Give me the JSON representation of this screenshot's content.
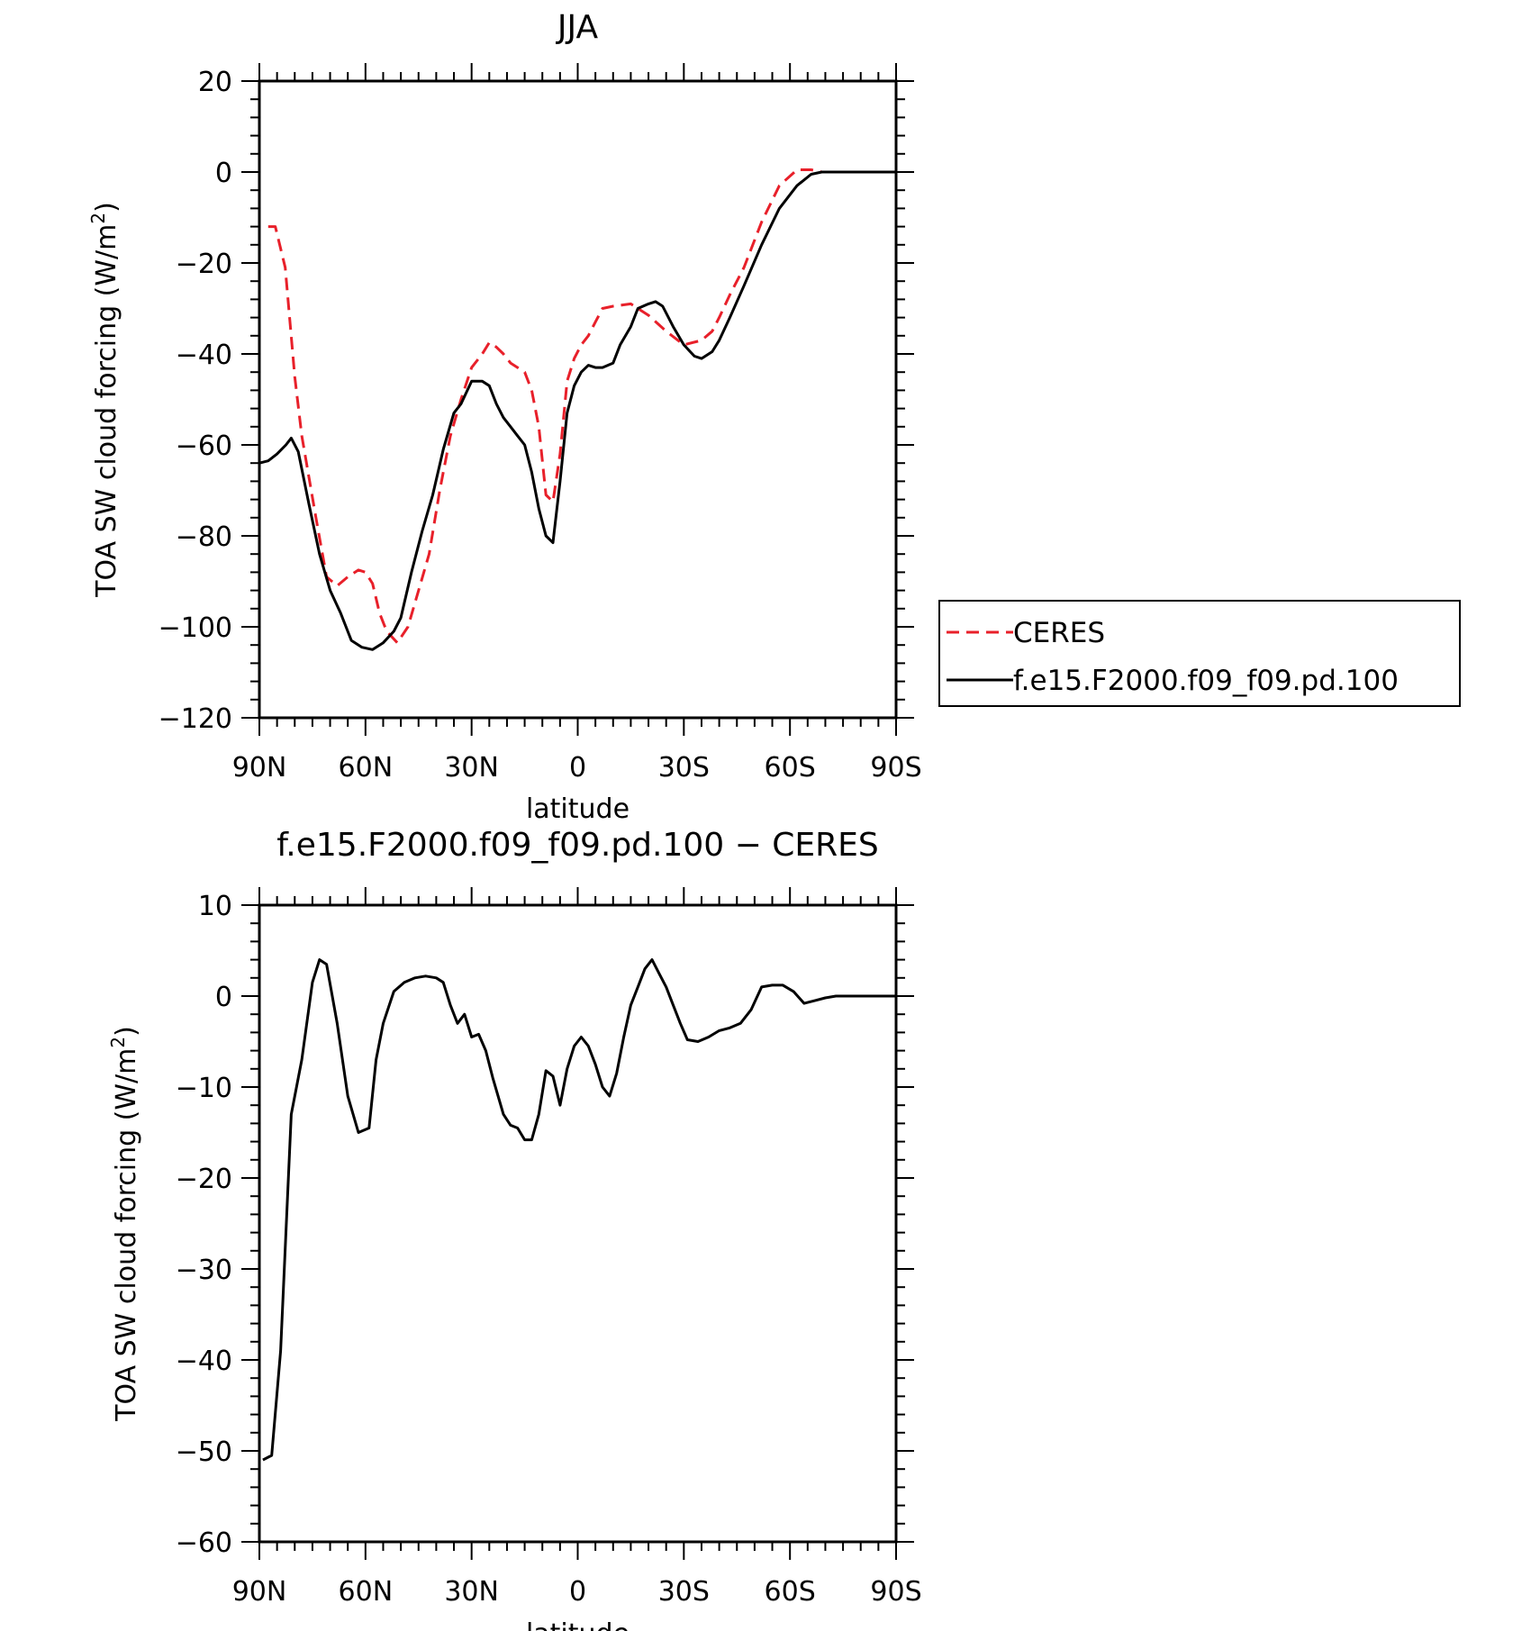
{
  "colors": {
    "ceres": "#e8202a",
    "model": "#000000",
    "axes": "#000000"
  },
  "chart_data": [
    {
      "type": "line",
      "title": "JJA",
      "xlabel": "latitude",
      "ylabel": "TOA SW cloud forcing (W/m²)",
      "ylabel_parts": [
        "TOA SW cloud forcing (W/m",
        "2",
        ")"
      ],
      "xlim": [
        -90,
        90
      ],
      "ylim": [
        -120,
        20
      ],
      "x_ticks": [
        -90,
        -60,
        -30,
        0,
        30,
        60,
        90
      ],
      "x_tick_labels": [
        "90N",
        "60N",
        "30N",
        "0",
        "30S",
        "60S",
        "90S"
      ],
      "y_ticks": [
        20,
        0,
        -20,
        -40,
        -60,
        -80,
        -100,
        -120
      ],
      "y_tick_labels": [
        "20",
        "0",
        "−20",
        "−40",
        "−60",
        "−80",
        "−100",
        "−120"
      ],
      "legend": {
        "placement": "right",
        "entries": [
          "CERES",
          "f.e15.F2000.f09_f09.pd.100"
        ]
      },
      "series": [
        {
          "name": "CERES",
          "style": "dashed",
          "x": [
            -87.5,
            -85.5,
            -82.7,
            -80,
            -78,
            -74,
            -71,
            -68,
            -65,
            -62,
            -60,
            -58,
            -56,
            -54,
            -51,
            -48,
            -45,
            -42,
            -39,
            -36,
            -33,
            -30,
            -27,
            -25,
            -23,
            -21,
            -19,
            -17,
            -15,
            -13,
            -11,
            -9,
            -7,
            -5,
            -3,
            -1,
            1,
            3,
            5,
            7,
            10,
            15,
            20,
            25,
            30,
            35,
            38,
            40,
            43,
            47,
            52,
            57,
            62,
            66,
            69,
            72,
            75,
            80,
            85,
            90
          ],
          "y": [
            -12,
            -12,
            -21,
            -45,
            -58,
            -76,
            -89,
            -91,
            -89,
            -87.5,
            -88,
            -90.5,
            -97,
            -101,
            -103.5,
            -100,
            -92,
            -84,
            -70,
            -58,
            -50,
            -43,
            -40,
            -37.5,
            -38.5,
            -40,
            -42,
            -43,
            -44,
            -48,
            -56,
            -71,
            -72.5,
            -62,
            -46,
            -41,
            -38,
            -36,
            -33,
            -30,
            -29.5,
            -29,
            -31.5,
            -35,
            -38,
            -37,
            -35,
            -32,
            -27,
            -21,
            -11,
            -3,
            0.5,
            0.5,
            0,
            0,
            0,
            0,
            0,
            0
          ]
        },
        {
          "name": "f.e15.F2000.f09_f09.pd.100",
          "style": "solid",
          "x": [
            -90,
            -87.5,
            -85,
            -82.5,
            -81,
            -79,
            -76,
            -73,
            -70,
            -67,
            -64,
            -61,
            -58,
            -55,
            -52,
            -50,
            -47,
            -44,
            -41,
            -38,
            -35,
            -33,
            -30,
            -27,
            -25,
            -23,
            -21,
            -19,
            -17,
            -15,
            -13,
            -11,
            -9,
            -7,
            -5,
            -3,
            -1,
            1,
            3,
            5,
            7,
            10,
            12,
            15,
            17,
            20,
            22,
            24,
            27,
            30,
            33,
            35,
            38,
            40,
            43,
            47,
            52,
            57,
            62,
            66,
            69,
            72,
            75,
            80,
            85,
            90
          ],
          "y": [
            -64,
            -63.5,
            -62,
            -60,
            -58.5,
            -61.5,
            -73,
            -84,
            -92,
            -97,
            -103,
            -104.5,
            -105,
            -103.5,
            -101,
            -98,
            -88,
            -79,
            -71,
            -61,
            -53,
            -51,
            -46,
            -46,
            -47,
            -51,
            -54,
            -56,
            -58,
            -60,
            -66,
            -74,
            -80,
            -81.5,
            -68,
            -53,
            -47,
            -44,
            -42.5,
            -43,
            -43,
            -42,
            -38,
            -34,
            -30,
            -29,
            -28.5,
            -29.5,
            -34,
            -38,
            -40.5,
            -41,
            -39.5,
            -37,
            -32,
            -25,
            -16,
            -8,
            -3,
            -0.5,
            0,
            0,
            0,
            0,
            0,
            0
          ]
        }
      ]
    },
    {
      "type": "line",
      "title": "f.e15.F2000.f09_f09.pd.100 − CERES",
      "xlabel": "latitude",
      "ylabel": "TOA SW cloud forcing (W/m²)",
      "ylabel_parts": [
        "TOA SW cloud forcing (W/m",
        "2",
        ")"
      ],
      "xlim": [
        -90,
        90
      ],
      "ylim": [
        -60,
        10
      ],
      "x_ticks": [
        -90,
        -60,
        -30,
        0,
        30,
        60,
        90
      ],
      "x_tick_labels": [
        "90N",
        "60N",
        "30N",
        "0",
        "30S",
        "60S",
        "90S"
      ],
      "y_ticks": [
        10,
        0,
        -10,
        -20,
        -30,
        -40,
        -50,
        -60
      ],
      "y_tick_labels": [
        "10",
        "0",
        "−10",
        "−20",
        "−30",
        "−40",
        "−50",
        "−60"
      ],
      "series": [
        {
          "style": "solid",
          "x": [
            -89,
            -86.5,
            -84,
            -81,
            -78,
            -75,
            -73,
            -71,
            -68,
            -65,
            -62,
            -59,
            -57,
            -55,
            -52,
            -49,
            -46,
            -43,
            -40,
            -38,
            -36,
            -34,
            -32,
            -30,
            -28,
            -26,
            -24,
            -21,
            -19,
            -17,
            -15,
            -13,
            -11,
            -9,
            -7,
            -5,
            -3,
            -1,
            1,
            3,
            5,
            7,
            9,
            11,
            13,
            15,
            17,
            19,
            21,
            23,
            25,
            27,
            29,
            31,
            34,
            37,
            40,
            43,
            46,
            49,
            52,
            55,
            58,
            61,
            64,
            67,
            70,
            73,
            76,
            80,
            85,
            90
          ],
          "y": [
            -51,
            -50.5,
            -39,
            -13,
            -7,
            1.5,
            4,
            3.5,
            -3,
            -11,
            -15,
            -14.5,
            -7,
            -3,
            0.5,
            1.5,
            2,
            2.2,
            2,
            1.5,
            -1,
            -3,
            -2,
            -4.5,
            -4.2,
            -6,
            -9,
            -13,
            -14.2,
            -14.5,
            -15.8,
            -15.8,
            -13,
            -8.2,
            -8.8,
            -12,
            -8,
            -5.5,
            -4.5,
            -5.5,
            -7.5,
            -10,
            -11,
            -8.5,
            -4.5,
            -1,
            1,
            3,
            4,
            2.5,
            1,
            -1,
            -3,
            -4.8,
            -5,
            -4.5,
            -3.8,
            -3.5,
            -3,
            -1.5,
            1,
            1.2,
            1.2,
            0.5,
            -0.8,
            -0.5,
            -0.2,
            0,
            0,
            0,
            0,
            0
          ]
        }
      ]
    }
  ]
}
